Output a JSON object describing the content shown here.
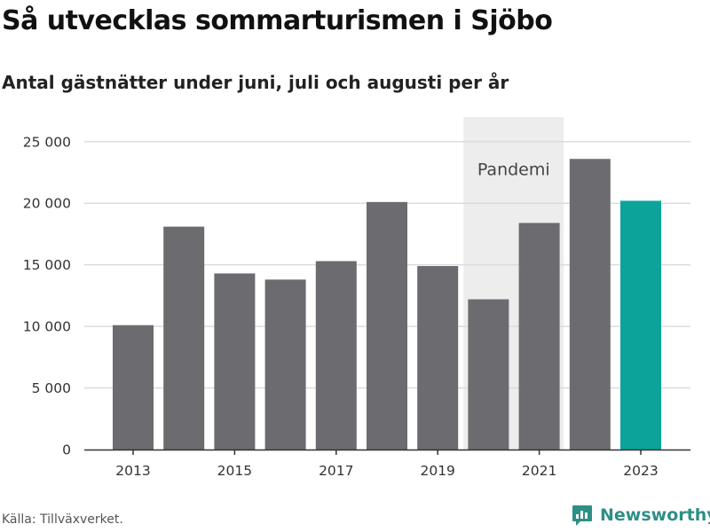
{
  "title": "Så utvecklas sommarturismen i Sjöbo",
  "subtitle": "Antal gästnätter under juni, juli och augusti per år",
  "source": "Källa: Tillväxverket.",
  "brand": {
    "name": "Newsworthy",
    "icon": "newsworthy-logo-icon"
  },
  "colors": {
    "bar": "#6c6b70",
    "highlight": "#0ba39a",
    "shade": "#ededed",
    "grid": "#dcdcdc",
    "axis": "#333333"
  },
  "chart_data": {
    "type": "bar",
    "title": "Så utvecklas sommarturismen i Sjöbo",
    "subtitle": "Antal gästnätter under juni, juli och augusti per år",
    "xlabel": "",
    "ylabel": "",
    "categories": [
      "2013",
      "2014",
      "2015",
      "2016",
      "2017",
      "2018",
      "2019",
      "2020",
      "2021",
      "2022",
      "2023"
    ],
    "values": [
      10100,
      18100,
      14300,
      13800,
      15300,
      20100,
      14900,
      12200,
      18400,
      23600,
      20200
    ],
    "highlight_category": "2023",
    "x_tick_labels": [
      "2013",
      "2015",
      "2017",
      "2019",
      "2021",
      "2023"
    ],
    "y_tick_values": [
      0,
      5000,
      10000,
      15000,
      20000,
      25000
    ],
    "y_tick_labels": [
      "0",
      "5 000",
      "10 000",
      "15 000",
      "20 000",
      "25 000"
    ],
    "ylim": [
      0,
      27000
    ],
    "grid": true,
    "legend": "none",
    "annotations": [
      {
        "text": "Pandemi",
        "type": "shaded-range",
        "from": "2020",
        "to": "2021"
      }
    ]
  }
}
